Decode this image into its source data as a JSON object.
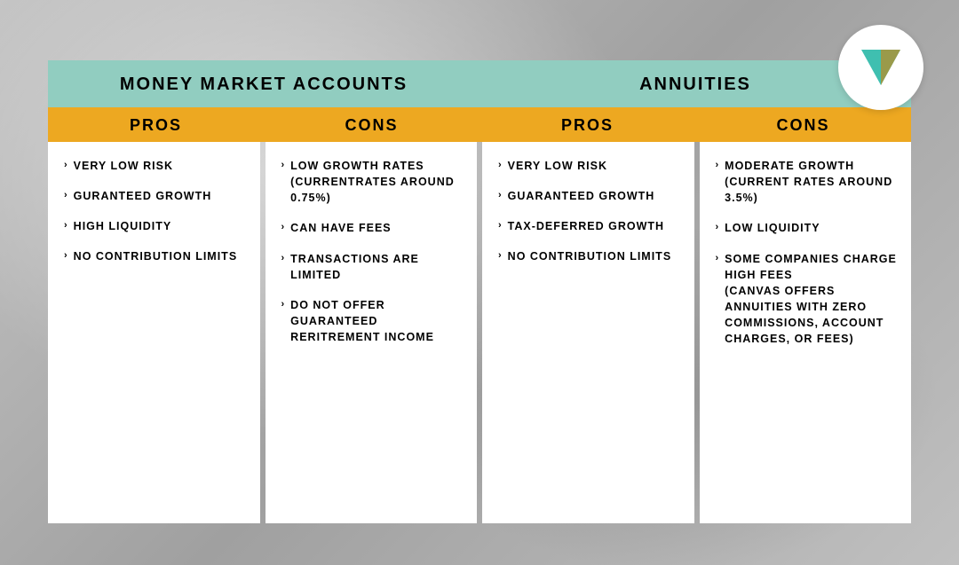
{
  "colors": {
    "header_bg": "#91cdc0",
    "sub_bg": "#eda821",
    "body_bg": "#ffffff",
    "text": "#000000",
    "logo_teal": "#3fbfb0",
    "logo_olive": "#9a9a4a"
  },
  "logo": {
    "shape": "triangle"
  },
  "sections": [
    {
      "title": "MONEY MARKET ACCOUNTS",
      "columns": [
        {
          "label": "PROS",
          "items": [
            {
              "text": "VERY LOW RISK"
            },
            {
              "text": "GURANTEED GROWTH"
            },
            {
              "text": "HIGH LIQUIDITY"
            },
            {
              "text": "NO CONTRIBUTION LIMITS"
            }
          ]
        },
        {
          "label": "CONS",
          "items": [
            {
              "text": "LOW GROWTH RATES",
              "sub": "(CURRENTRATES AROUND 0.75%)"
            },
            {
              "text": "CAN HAVE FEES"
            },
            {
              "text": "TRANSACTIONS ARE LIMITED"
            },
            {
              "text": "DO NOT OFFER GUARANTEED RERITREMENT INCOME"
            }
          ]
        }
      ]
    },
    {
      "title": "ANNUITIES",
      "columns": [
        {
          "label": "PROS",
          "items": [
            {
              "text": "VERY LOW RISK"
            },
            {
              "text": "GUARANTEED GROWTH"
            },
            {
              "text": "TAX-DEFERRED GROWTH"
            },
            {
              "text": "NO CONTRIBUTION LIMITS"
            }
          ]
        },
        {
          "label": "CONS",
          "items": [
            {
              "text": "MODERATE GROWTH",
              "sub": "(CURRENT RATES AROUND 3.5%)"
            },
            {
              "text": "LOW LIQUIDITY"
            },
            {
              "text": "SOME COMPANIES CHARGE HIGH FEES",
              "sub": "(CANVAS OFFERS ANNUITIES WITH ZERO COMMISSIONS, ACCOUNT CHARGES, OR FEES)"
            }
          ]
        }
      ]
    }
  ]
}
